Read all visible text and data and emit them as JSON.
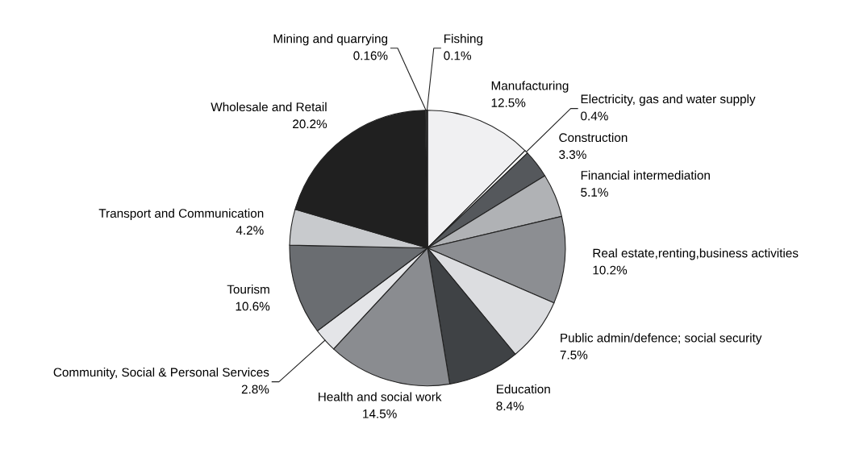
{
  "chart_data": {
    "type": "pie",
    "categories": [
      "Manufacturing",
      "Electricity, gas and water supply",
      "Construction",
      "Financial intermediation",
      "Real estate,renting,business activities",
      "Public admin/defence; social security",
      "Education",
      "Health and social work",
      "Community, Social & Personal Services",
      "Tourism",
      "Transport and Communication",
      "Wholesale and Retail",
      "Mining and quarrying",
      "Fishing"
    ],
    "values": [
      12.5,
      0.4,
      3.3,
      5.1,
      10.2,
      7.5,
      8.4,
      14.5,
      2.8,
      10.6,
      4.2,
      20.2,
      0.16,
      0.1
    ],
    "value_labels": [
      "12.5%",
      "0.4%",
      "3.3%",
      "5.1%",
      "10.2%",
      "7.5%",
      "8.4%",
      "14.5%",
      "2.8%",
      "10.6%",
      "4.2%",
      "20.2%",
      "0.16%",
      "0.1%"
    ],
    "colors": [
      "#f0f0f2",
      "#fafafa",
      "#55585c",
      "#b0b2b5",
      "#8c8e92",
      "#dcdde0",
      "#3f4245",
      "#8a8c90",
      "#e4e5e8",
      "#6a6d71",
      "#c8cacd",
      "#202020",
      "#888888",
      "#cccccc"
    ]
  }
}
